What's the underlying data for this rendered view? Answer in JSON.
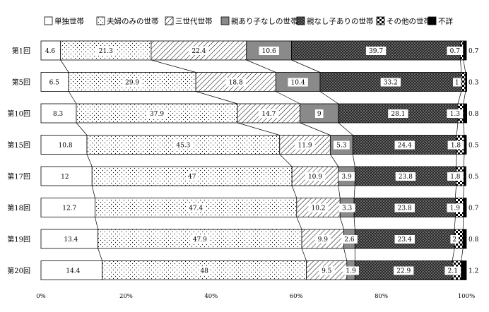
{
  "chart_data": {
    "type": "bar",
    "orientation": "horizontal",
    "stacked": true,
    "percent": true,
    "categories": [
      "第1回",
      "第5回",
      "第10回",
      "第15回",
      "第17回",
      "第18回",
      "第19回",
      "第20回"
    ],
    "series": [
      {
        "name": "単独世帯",
        "pattern": "white",
        "values": [
          4.6,
          6.5,
          8.3,
          10.8,
          12.0,
          12.7,
          13.4,
          14.4
        ]
      },
      {
        "name": "夫婦のみの世帯",
        "pattern": "dots",
        "values": [
          21.3,
          29.9,
          37.9,
          45.3,
          47.0,
          47.4,
          47.9,
          48.0
        ]
      },
      {
        "name": "三世代世帯",
        "pattern": "diagonal",
        "values": [
          22.4,
          18.8,
          14.7,
          11.9,
          10.9,
          10.2,
          9.9,
          9.5
        ]
      },
      {
        "name": "親あり子なしの世帯",
        "pattern": "gray",
        "values": [
          10.6,
          10.4,
          9.0,
          5.3,
          3.9,
          3.3,
          2.6,
          1.9
        ]
      },
      {
        "name": "親なし子ありの世帯",
        "pattern": "crosshatch",
        "values": [
          39.7,
          33.2,
          28.1,
          24.4,
          23.8,
          23.8,
          23.4,
          22.9
        ]
      },
      {
        "name": "その他の世帯",
        "pattern": "checker",
        "values": [
          0.7,
          1.0,
          1.3,
          1.8,
          1.8,
          1.9,
          2.0,
          2.1
        ]
      },
      {
        "name": "不詳",
        "pattern": "black",
        "values": [
          0.7,
          0.3,
          0.8,
          0.5,
          0.5,
          0.7,
          0.8,
          1.2
        ]
      }
    ],
    "xlim": [
      0,
      100
    ],
    "xticks": [
      "0%",
      "20%",
      "40%",
      "60%",
      "80%",
      "100%"
    ],
    "legend_position": "top",
    "grid": false
  }
}
